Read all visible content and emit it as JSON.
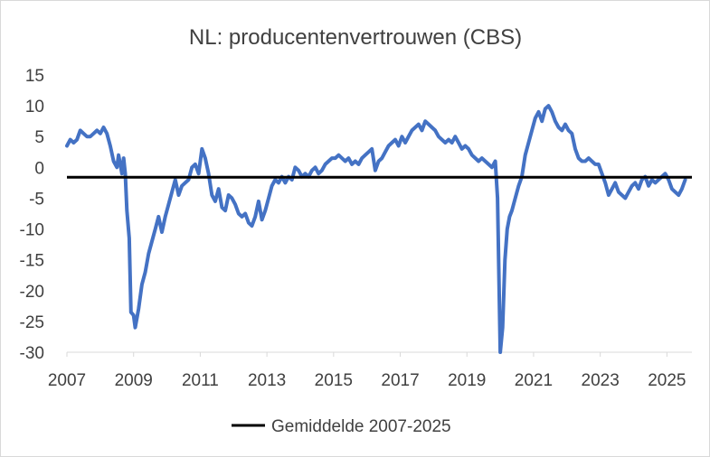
{
  "chart_data": {
    "type": "line",
    "title": "NL: producentenvertrouwen (CBS)",
    "xlabel": "",
    "ylabel": "",
    "ylim": [
      -30,
      15
    ],
    "xlim": [
      2007.0,
      2025.75
    ],
    "y_ticks": [
      "15",
      "10",
      "5",
      "0",
      "-5",
      "-10",
      "-15",
      "-20",
      "-25",
      "-30"
    ],
    "x_ticks": [
      "2007",
      "2009",
      "2011",
      "2013",
      "2015",
      "2017",
      "2019",
      "2021",
      "2023",
      "2025"
    ],
    "grid": "none",
    "legend_position": "bottom",
    "legend": [
      "Gemiddelde 2007-2025"
    ],
    "series": [
      {
        "color": "#4472c4",
        "points": [
          [
            2007.0,
            3.5
          ],
          [
            2007.1,
            4.5
          ],
          [
            2007.2,
            4
          ],
          [
            2007.3,
            4.5
          ],
          [
            2007.4,
            6
          ],
          [
            2007.5,
            5.5
          ],
          [
            2007.6,
            5
          ],
          [
            2007.7,
            5
          ],
          [
            2007.8,
            5.5
          ],
          [
            2007.9,
            6
          ],
          [
            2008.0,
            5.5
          ],
          [
            2008.1,
            6.5
          ],
          [
            2008.2,
            5.5
          ],
          [
            2008.3,
            3.5
          ],
          [
            2008.4,
            1
          ],
          [
            2008.5,
            0
          ],
          [
            2008.55,
            2
          ],
          [
            2008.6,
            0.5
          ],
          [
            2008.65,
            -1
          ],
          [
            2008.7,
            1.5
          ],
          [
            2008.75,
            -1
          ],
          [
            2008.8,
            -7
          ],
          [
            2008.87,
            -11.5
          ],
          [
            2008.92,
            -23.5
          ],
          [
            2009.0,
            -24
          ],
          [
            2009.05,
            -26
          ],
          [
            2009.15,
            -23
          ],
          [
            2009.25,
            -19
          ],
          [
            2009.35,
            -17
          ],
          [
            2009.45,
            -14
          ],
          [
            2009.55,
            -12
          ],
          [
            2009.65,
            -10
          ],
          [
            2009.75,
            -8
          ],
          [
            2009.85,
            -10.5
          ],
          [
            2009.95,
            -8
          ],
          [
            2010.05,
            -6
          ],
          [
            2010.15,
            -4
          ],
          [
            2010.25,
            -2
          ],
          [
            2010.35,
            -4.5
          ],
          [
            2010.45,
            -3
          ],
          [
            2010.55,
            -2.5
          ],
          [
            2010.65,
            -2
          ],
          [
            2010.75,
            0
          ],
          [
            2010.85,
            0.5
          ],
          [
            2010.95,
            -1
          ],
          [
            2011.05,
            3
          ],
          [
            2011.15,
            1.5
          ],
          [
            2011.25,
            -1
          ],
          [
            2011.35,
            -4.5
          ],
          [
            2011.45,
            -5.5
          ],
          [
            2011.55,
            -3.5
          ],
          [
            2011.65,
            -6.5
          ],
          [
            2011.75,
            -7
          ],
          [
            2011.85,
            -4.5
          ],
          [
            2011.95,
            -5
          ],
          [
            2012.05,
            -6
          ],
          [
            2012.15,
            -7.5
          ],
          [
            2012.25,
            -8
          ],
          [
            2012.35,
            -7.5
          ],
          [
            2012.45,
            -9
          ],
          [
            2012.55,
            -9.5
          ],
          [
            2012.65,
            -8
          ],
          [
            2012.75,
            -5.5
          ],
          [
            2012.85,
            -8.5
          ],
          [
            2012.95,
            -7
          ],
          [
            2013.05,
            -5
          ],
          [
            2013.15,
            -3
          ],
          [
            2013.25,
            -2
          ],
          [
            2013.35,
            -2.5
          ],
          [
            2013.45,
            -1.5
          ],
          [
            2013.55,
            -2.5
          ],
          [
            2013.65,
            -1.5
          ],
          [
            2013.75,
            -2
          ],
          [
            2013.85,
            0
          ],
          [
            2013.95,
            -0.5
          ],
          [
            2014.05,
            -1.5
          ],
          [
            2014.15,
            -1
          ],
          [
            2014.25,
            -1.5
          ],
          [
            2014.35,
            -0.5
          ],
          [
            2014.45,
            0
          ],
          [
            2014.55,
            -1
          ],
          [
            2014.65,
            -0.5
          ],
          [
            2014.75,
            0.5
          ],
          [
            2014.85,
            1
          ],
          [
            2014.95,
            1.5
          ],
          [
            2015.05,
            1.5
          ],
          [
            2015.15,
            2
          ],
          [
            2015.25,
            1.5
          ],
          [
            2015.35,
            1
          ],
          [
            2015.45,
            1.5
          ],
          [
            2015.55,
            0.5
          ],
          [
            2015.65,
            1
          ],
          [
            2015.75,
            0.5
          ],
          [
            2015.85,
            1.5
          ],
          [
            2015.95,
            2
          ],
          [
            2016.05,
            2.5
          ],
          [
            2016.15,
            3
          ],
          [
            2016.25,
            -0.5
          ],
          [
            2016.35,
            1
          ],
          [
            2016.45,
            1.5
          ],
          [
            2016.55,
            2.5
          ],
          [
            2016.65,
            3.5
          ],
          [
            2016.75,
            4
          ],
          [
            2016.85,
            4.5
          ],
          [
            2016.95,
            3.5
          ],
          [
            2017.05,
            5
          ],
          [
            2017.15,
            4
          ],
          [
            2017.25,
            5
          ],
          [
            2017.35,
            6
          ],
          [
            2017.45,
            6.5
          ],
          [
            2017.55,
            7
          ],
          [
            2017.65,
            6
          ],
          [
            2017.75,
            7.5
          ],
          [
            2017.85,
            7
          ],
          [
            2017.95,
            6.5
          ],
          [
            2018.05,
            6
          ],
          [
            2018.15,
            5
          ],
          [
            2018.25,
            4.5
          ],
          [
            2018.35,
            4
          ],
          [
            2018.45,
            4.5
          ],
          [
            2018.55,
            4
          ],
          [
            2018.65,
            5
          ],
          [
            2018.75,
            4
          ],
          [
            2018.85,
            3
          ],
          [
            2018.95,
            3.5
          ],
          [
            2019.05,
            3
          ],
          [
            2019.15,
            2
          ],
          [
            2019.25,
            1.5
          ],
          [
            2019.35,
            1
          ],
          [
            2019.45,
            1.5
          ],
          [
            2019.55,
            1
          ],
          [
            2019.65,
            0.5
          ],
          [
            2019.75,
            0
          ],
          [
            2019.85,
            1
          ],
          [
            2019.92,
            -5
          ],
          [
            2020.0,
            -30
          ],
          [
            2020.07,
            -26
          ],
          [
            2020.14,
            -15
          ],
          [
            2020.21,
            -10
          ],
          [
            2020.28,
            -8
          ],
          [
            2020.35,
            -7
          ],
          [
            2020.45,
            -5
          ],
          [
            2020.55,
            -3
          ],
          [
            2020.65,
            -1.5
          ],
          [
            2020.75,
            2
          ],
          [
            2020.85,
            4
          ],
          [
            2020.95,
            6
          ],
          [
            2021.05,
            8
          ],
          [
            2021.15,
            9
          ],
          [
            2021.25,
            7.5
          ],
          [
            2021.35,
            9.5
          ],
          [
            2021.45,
            10
          ],
          [
            2021.55,
            9
          ],
          [
            2021.65,
            7.5
          ],
          [
            2021.75,
            6.5
          ],
          [
            2021.85,
            6
          ],
          [
            2021.95,
            7
          ],
          [
            2022.05,
            6
          ],
          [
            2022.15,
            5.5
          ],
          [
            2022.25,
            3
          ],
          [
            2022.35,
            1.5
          ],
          [
            2022.45,
            1
          ],
          [
            2022.55,
            1
          ],
          [
            2022.65,
            1.5
          ],
          [
            2022.75,
            1
          ],
          [
            2022.85,
            0.5
          ],
          [
            2022.95,
            0.5
          ],
          [
            2023.05,
            -1
          ],
          [
            2023.15,
            -2.5
          ],
          [
            2023.25,
            -4.5
          ],
          [
            2023.35,
            -3.5
          ],
          [
            2023.45,
            -2.5
          ],
          [
            2023.55,
            -4
          ],
          [
            2023.65,
            -4.5
          ],
          [
            2023.75,
            -5
          ],
          [
            2023.85,
            -4
          ],
          [
            2023.95,
            -3
          ],
          [
            2024.05,
            -2.5
          ],
          [
            2024.15,
            -3.5
          ],
          [
            2024.25,
            -2
          ],
          [
            2024.35,
            -1.5
          ],
          [
            2024.45,
            -3
          ],
          [
            2024.55,
            -2
          ],
          [
            2024.65,
            -2.5
          ],
          [
            2024.75,
            -2
          ],
          [
            2024.85,
            -1.5
          ],
          [
            2024.95,
            -1
          ],
          [
            2025.05,
            -2
          ],
          [
            2025.15,
            -3.5
          ],
          [
            2025.25,
            -4
          ],
          [
            2025.35,
            -4.5
          ],
          [
            2025.45,
            -3.5
          ],
          [
            2025.55,
            -2
          ]
        ]
      },
      {
        "name": "Gemiddelde 2007-2025",
        "color": "#000000",
        "points": [
          [
            2007.0,
            -1.6
          ],
          [
            2025.75,
            -1.6
          ]
        ]
      }
    ]
  }
}
